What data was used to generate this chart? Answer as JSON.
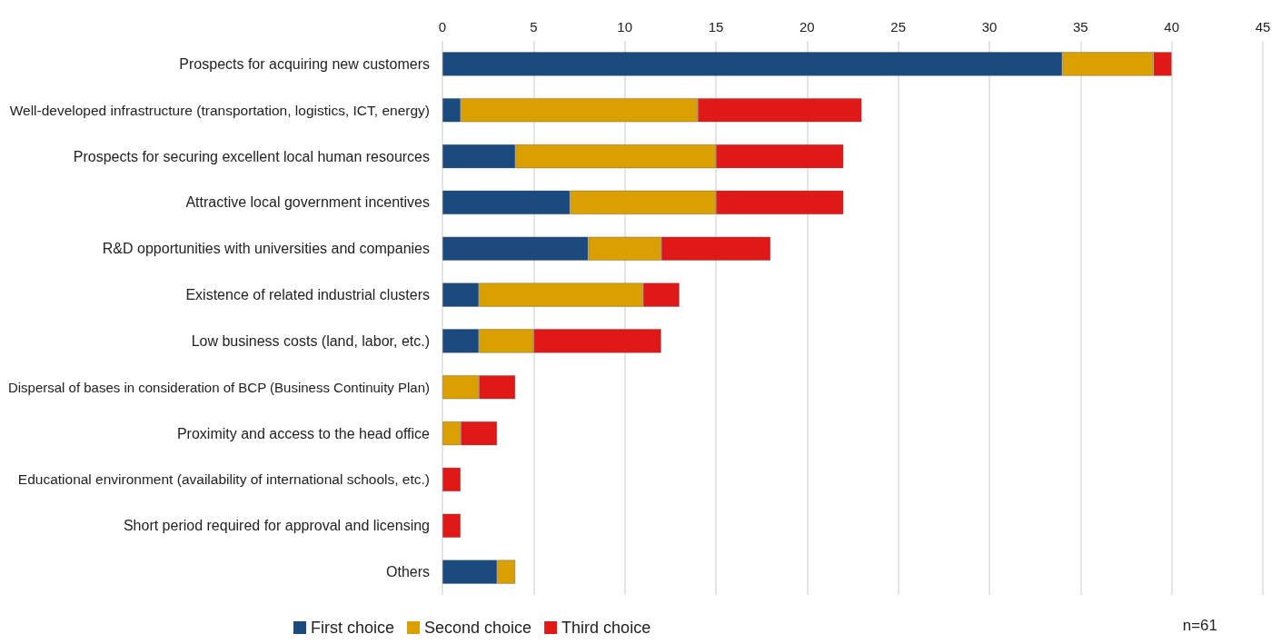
{
  "chart_data": {
    "type": "bar",
    "orientation": "horizontal",
    "stacked": true,
    "categories": [
      "Prospects for acquiring new customers",
      "Well-developed infrastructure (transportation, logistics, ICT, energy)",
      "Prospects for securing excellent local human resources",
      "Attractive local government incentives",
      "R&D opportunities with universities and companies",
      "Existence of related industrial clusters",
      "Low business costs (land, labor, etc.)",
      "Dispersal of bases in consideration of BCP (Business Continuity Plan)",
      "Proximity and access to the head office",
      "Educational environment (availability of international schools, etc.)",
      "Short period required for approval and licensing",
      "Others"
    ],
    "series": [
      {
        "name": "First choice",
        "color": "#1a4a7e",
        "values": [
          34,
          1,
          4,
          7,
          8,
          2,
          2,
          0,
          0,
          0,
          0,
          3
        ]
      },
      {
        "name": "Second choice",
        "color": "#d9a000",
        "values": [
          5,
          13,
          11,
          8,
          4,
          9,
          3,
          2,
          1,
          0,
          0,
          1
        ]
      },
      {
        "name": "Third choice",
        "color": "#e01818",
        "values": [
          1,
          9,
          7,
          7,
          6,
          2,
          7,
          2,
          2,
          1,
          1,
          0
        ]
      }
    ],
    "xlim": [
      0,
      45
    ],
    "xticks": [
      0,
      5,
      10,
      15,
      20,
      25,
      30,
      35,
      40,
      45
    ],
    "grid": "x",
    "legend": "bottom",
    "annotations": [
      "n=61"
    ]
  }
}
